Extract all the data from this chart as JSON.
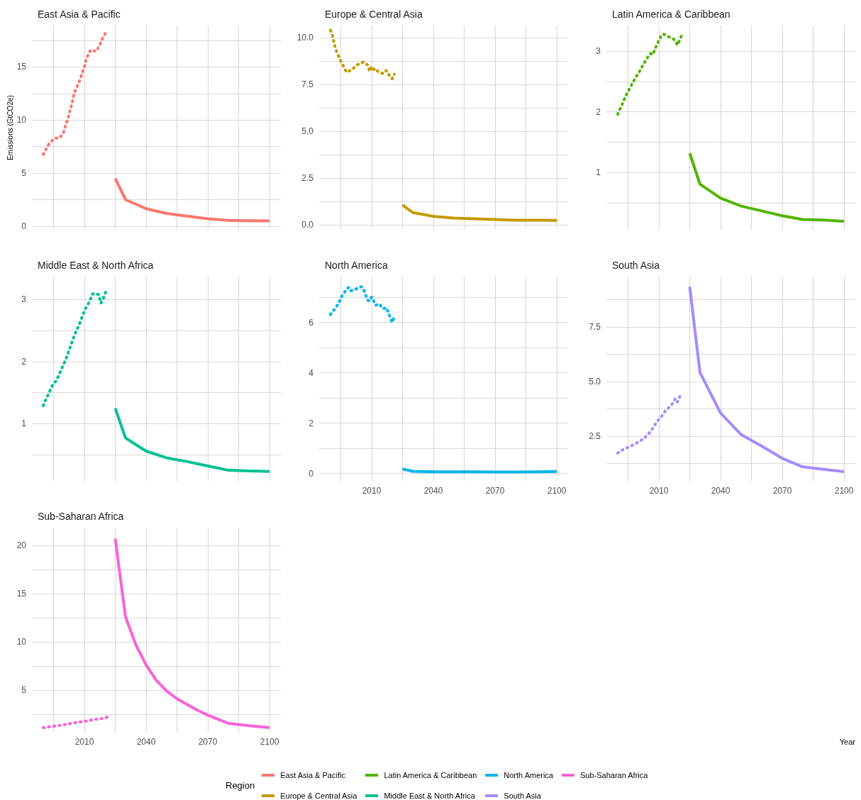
{
  "chart_data": [
    {
      "type": "line",
      "title": "East Asia & Pacific",
      "ylabel": "Emissions (GtCO2e)",
      "legend": "bottom",
      "legend_title": "Region",
      "grid": true,
      "tick_labels": "y",
      "xlim": [
        1984.5,
        2105.5
      ],
      "xticks": [
        {
          "value": 1995,
          "label": null
        },
        2010,
        {
          "value": 2025,
          "label": null
        },
        2040,
        {
          "value": 2055,
          "label": null
        },
        2070,
        {
          "value": 2085,
          "label": null
        },
        2100
      ],
      "ylim": [
        -0.34,
        18.9
      ],
      "yticks": [
        0,
        {
          "value": 2.5,
          "label": null
        },
        5,
        {
          "value": 7.5,
          "label": null
        },
        10,
        {
          "value": 12.5,
          "label": null
        },
        15,
        {
          "value": 17.5,
          "label": null
        }
      ],
      "series": [
        {
          "color": "#f8766d",
          "line_style": "dotted",
          "x": [
            1990,
            1991,
            1992,
            1993,
            1994,
            1995,
            1996,
            1997,
            1998,
            1999,
            2000,
            2001,
            2002,
            2003,
            2004,
            2005,
            2006,
            2007,
            2008,
            2009,
            2010,
            2011,
            2012,
            2013,
            2014,
            2015,
            2016,
            2017,
            2018,
            2019,
            2020,
            2021
          ],
          "values": [
            6.76,
            7.1,
            7.5,
            7.8,
            8.0,
            8.2,
            8.3,
            8.3,
            8.3,
            8.6,
            8.9,
            9.6,
            10.1,
            10.9,
            11.6,
            12.5,
            12.95,
            13.4,
            13.85,
            14.5,
            15.0,
            15.8,
            16.2,
            16.6,
            16.55,
            16.5,
            16.5,
            16.9,
            17.3,
            17.8,
            18.1,
            18.5
          ]
        },
        {
          "name": "East Asia & Pacific",
          "color": "#f8766d",
          "line_style": "solid",
          "x": [
            2025,
            2030,
            2040,
            2050,
            2060,
            2070,
            2080,
            2090,
            2100
          ],
          "values": [
            4.5,
            2.5,
            1.65,
            1.2,
            0.95,
            0.7,
            0.55,
            0.52,
            0.5
          ]
        }
      ]
    },
    {
      "type": "line",
      "title": "Europe & Central Asia",
      "grid": true,
      "tick_labels": "y",
      "xlim": [
        1984.5,
        2105.5
      ],
      "xticks": [
        {
          "value": 1995,
          "label": null
        },
        2010,
        {
          "value": 2025,
          "label": null
        },
        2040,
        {
          "value": 2055,
          "label": null
        },
        2070,
        {
          "value": 2085,
          "label": null
        },
        2100
      ],
      "ylim": [
        -0.27,
        10.65
      ],
      "yticks": [
        {
          "value": 0,
          "label": "0.0"
        },
        {
          "value": 1.25,
          "label": null
        },
        2.5,
        {
          "value": 3.75,
          "label": null
        },
        {
          "value": 5,
          "label": "5.0"
        },
        {
          "value": 6.25,
          "label": null
        },
        7.5,
        {
          "value": 8.75,
          "label": null
        },
        {
          "value": 10,
          "label": "10.0"
        }
      ],
      "series": [
        {
          "color": "#c49a00",
          "line_style": "dotted",
          "x": [
            1990,
            1991,
            1992,
            1993,
            1994,
            1995,
            1996,
            1997,
            1998,
            1999,
            2000,
            2001,
            2002,
            2003,
            2004,
            2005,
            2006,
            2007,
            2008,
            2009,
            2010,
            2011,
            2012,
            2013,
            2014,
            2015,
            2016,
            2017,
            2018,
            2019,
            2020,
            2021
          ],
          "values": [
            10.4,
            10.1,
            9.6,
            9.25,
            9.0,
            8.75,
            8.55,
            8.3,
            8.15,
            8.2,
            8.3,
            8.35,
            8.45,
            8.55,
            8.6,
            8.65,
            8.7,
            8.6,
            8.55,
            8.2,
            8.45,
            8.3,
            8.35,
            8.2,
            8.15,
            8.1,
            8.1,
            8.25,
            8.1,
            7.9,
            7.8,
            8.05
          ]
        },
        {
          "name": "Europe & Central Asia",
          "color": "#c49a00",
          "line_style": "solid",
          "x": [
            2025,
            2030,
            2040,
            2050,
            2060,
            2070,
            2080,
            2090,
            2100
          ],
          "values": [
            1.05,
            0.65,
            0.45,
            0.36,
            0.32,
            0.28,
            0.24,
            0.24,
            0.23
          ]
        }
      ]
    },
    {
      "type": "line",
      "title": "Latin America & Caribbean",
      "grid": true,
      "tick_labels": "y",
      "xlim": [
        1984.5,
        2105.5
      ],
      "xticks": [
        {
          "value": 1995,
          "label": null
        },
        2010,
        {
          "value": 2025,
          "label": null
        },
        2040,
        {
          "value": 2055,
          "label": null
        },
        2070,
        {
          "value": 2085,
          "label": null
        },
        2100
      ],
      "ylim": [
        0.06,
        3.42
      ],
      "yticks": [
        {
          "value": 0.5,
          "label": null
        },
        1,
        {
          "value": 1.5,
          "label": null
        },
        2,
        {
          "value": 2.5,
          "label": null
        },
        3
      ],
      "series": [
        {
          "color": "#53b400",
          "line_style": "dotted",
          "x": [
            1990,
            1991,
            1992,
            1993,
            1994,
            1995,
            1996,
            1997,
            1998,
            1999,
            2000,
            2001,
            2002,
            2003,
            2004,
            2005,
            2006,
            2007,
            2008,
            2009,
            2010,
            2011,
            2012,
            2013,
            2014,
            2015,
            2016,
            2017,
            2018,
            2019,
            2020,
            2021
          ],
          "values": [
            1.96,
            2.04,
            2.11,
            2.19,
            2.27,
            2.33,
            2.4,
            2.46,
            2.52,
            2.58,
            2.63,
            2.69,
            2.75,
            2.81,
            2.87,
            2.92,
            2.96,
            2.94,
            3.02,
            3.1,
            3.17,
            3.24,
            3.28,
            3.27,
            3.25,
            3.23,
            3.22,
            3.2,
            3.17,
            3.1,
            3.17,
            3.25
          ]
        },
        {
          "name": "Latin America & Caribbean",
          "color": "#53b400",
          "line_style": "solid",
          "x": [
            2025,
            2030,
            2040,
            2050,
            2060,
            2070,
            2080,
            2090,
            2100
          ],
          "values": [
            1.32,
            0.81,
            0.58,
            0.45,
            0.37,
            0.29,
            0.23,
            0.22,
            0.2
          ]
        }
      ]
    },
    {
      "type": "line",
      "title": "Middle East & North Africa",
      "grid": true,
      "tick_labels": "y",
      "xlim": [
        1984.5,
        2105.5
      ],
      "xticks": [
        {
          "value": 1995,
          "label": null
        },
        2010,
        {
          "value": 2025,
          "label": null
        },
        2040,
        {
          "value": 2055,
          "label": null
        },
        2070,
        {
          "value": 2085,
          "label": null
        },
        2100
      ],
      "ylim": [
        0.08,
        3.37
      ],
      "yticks": [
        {
          "value": 0.5,
          "label": null
        },
        1,
        {
          "value": 1.5,
          "label": null
        },
        2,
        {
          "value": 2.5,
          "label": null
        },
        3
      ],
      "series": [
        {
          "color": "#00c094",
          "line_style": "dotted",
          "x": [
            1990,
            1991,
            1992,
            1993,
            1994,
            1995,
            1996,
            1997,
            1998,
            1999,
            2000,
            2001,
            2002,
            2003,
            2004,
            2005,
            2006,
            2007,
            2008,
            2009,
            2010,
            2011,
            2012,
            2013,
            2014,
            2015,
            2016,
            2017,
            2018,
            2019,
            2020,
            2021
          ],
          "values": [
            1.29,
            1.37,
            1.44,
            1.51,
            1.59,
            1.65,
            1.68,
            1.74,
            1.81,
            1.89,
            1.96,
            2.04,
            2.13,
            2.22,
            2.32,
            2.41,
            2.49,
            2.56,
            2.64,
            2.73,
            2.82,
            2.88,
            2.94,
            3.01,
            3.09,
            3.1,
            3.09,
            3.08,
            2.94,
            3.0,
            3.09,
            3.18
          ]
        },
        {
          "name": "Middle East & North Africa",
          "color": "#00c094",
          "line_style": "solid",
          "x": [
            2025,
            2030,
            2040,
            2050,
            2060,
            2070,
            2080,
            2090,
            2100
          ],
          "values": [
            1.25,
            0.77,
            0.56,
            0.45,
            0.39,
            0.32,
            0.25,
            0.24,
            0.23
          ]
        }
      ]
    },
    {
      "type": "line",
      "title": "North America",
      "grid": true,
      "xlim": [
        1984.5,
        2105.5
      ],
      "xticks": [
        {
          "value": 1995,
          "label": null
        },
        2010,
        {
          "value": 2025,
          "label": null
        },
        2040,
        {
          "value": 2055,
          "label": null
        },
        2070,
        {
          "value": 2085,
          "label": null
        },
        2100
      ],
      "ylim": [
        -0.29,
        7.82
      ],
      "yticks": [
        0,
        {
          "value": 1,
          "label": null
        },
        2,
        {
          "value": 3,
          "label": null
        },
        4,
        {
          "value": 5,
          "label": null
        },
        6,
        {
          "value": 7,
          "label": null
        }
      ],
      "series": [
        {
          "color": "#00b6eb",
          "line_style": "dotted",
          "x": [
            1990,
            1991,
            1992,
            1993,
            1994,
            1995,
            1996,
            1997,
            1998,
            1999,
            2000,
            2001,
            2002,
            2003,
            2004,
            2005,
            2006,
            2007,
            2008,
            2009,
            2010,
            2011,
            2012,
            2013,
            2014,
            2015,
            2016,
            2017,
            2018,
            2019,
            2020,
            2021
          ],
          "values": [
            6.31,
            6.43,
            6.52,
            6.64,
            6.77,
            6.94,
            7.12,
            7.22,
            7.33,
            7.4,
            7.26,
            7.29,
            7.31,
            7.35,
            7.4,
            7.42,
            7.33,
            7.12,
            6.89,
            6.85,
            7.01,
            6.85,
            6.68,
            6.71,
            6.73,
            6.57,
            6.55,
            6.59,
            6.43,
            6.2,
            6.0,
            6.22
          ]
        },
        {
          "name": "North America",
          "color": "#00b6eb",
          "line_style": "solid",
          "x": [
            2025,
            2030,
            2040,
            2050,
            2060,
            2070,
            2080,
            2090,
            2100
          ],
          "values": [
            0.18,
            0.09,
            0.07,
            0.07,
            0.07,
            0.06,
            0.06,
            0.07,
            0.08
          ]
        }
      ]
    },
    {
      "type": "line",
      "title": "South Asia",
      "xlabel": "Year",
      "grid": true,
      "xlim": [
        1984.5,
        2105.5
      ],
      "xticks": [
        {
          "value": 1995,
          "label": null
        },
        2010,
        {
          "value": 2025,
          "label": null
        },
        2040,
        {
          "value": 2055,
          "label": null
        },
        2070,
        {
          "value": 2085,
          "label": null
        },
        2100
      ],
      "ylim": [
        0.45,
        9.81
      ],
      "yticks": [
        {
          "value": 1.25,
          "label": null
        },
        2.5,
        {
          "value": 3.75,
          "label": null
        },
        {
          "value": 5,
          "label": "5.0"
        },
        {
          "value": 6.25,
          "label": null
        },
        7.5,
        {
          "value": 8.75,
          "label": null
        }
      ],
      "series": [
        {
          "color": "#a58aff",
          "line_style": "dotted",
          "x": [
            1990,
            1991,
            1992,
            1993,
            1994,
            1995,
            1996,
            1997,
            1998,
            1999,
            2000,
            2001,
            2002,
            2003,
            2004,
            2005,
            2006,
            2007,
            2008,
            2009,
            2010,
            2011,
            2012,
            2013,
            2014,
            2015,
            2016,
            2017,
            2018,
            2019,
            2020,
            2021
          ],
          "values": [
            1.72,
            1.78,
            1.85,
            1.9,
            1.95,
            1.98,
            2.03,
            2.08,
            2.13,
            2.18,
            2.23,
            2.29,
            2.35,
            2.4,
            2.52,
            2.6,
            2.72,
            2.85,
            3.0,
            3.16,
            3.26,
            3.37,
            3.5,
            3.64,
            3.74,
            3.82,
            3.9,
            4.05,
            4.22,
            4.06,
            4.28,
            4.44
          ]
        },
        {
          "name": "South Asia",
          "color": "#a58aff",
          "line_style": "solid",
          "x": [
            2025,
            2030,
            2040,
            2050,
            2060,
            2070,
            2080,
            2090,
            2100
          ],
          "values": [
            9.35,
            5.41,
            3.56,
            2.57,
            2.04,
            1.48,
            1.09,
            0.98,
            0.87
          ]
        }
      ]
    },
    {
      "type": "line",
      "title": "Sub-Saharan Africa",
      "grid": true,
      "xlim": [
        1984.5,
        2105.5
      ],
      "xticks": [
        {
          "value": 1995,
          "label": null
        },
        2010,
        {
          "value": 2025,
          "label": null
        },
        2040,
        {
          "value": 2055,
          "label": null
        },
        2070,
        {
          "value": 2085,
          "label": null
        },
        2100
      ],
      "ylim": [
        0.66,
        21.85
      ],
      "yticks": [
        {
          "value": 2.5,
          "label": null
        },
        5,
        {
          "value": 7.5,
          "label": null
        },
        10,
        {
          "value": 12.5,
          "label": null
        },
        15,
        {
          "value": 17.5,
          "label": null
        },
        20
      ],
      "series": [
        {
          "color": "#fb61d7",
          "line_style": "dotted",
          "x": [
            1990,
            1995,
            2000,
            2005,
            2010,
            2015,
            2020,
            2021
          ],
          "values": [
            1.1,
            1.25,
            1.4,
            1.6,
            1.75,
            1.95,
            2.1,
            2.2
          ]
        },
        {
          "name": "Sub-Saharan Africa",
          "color": "#fb61d7",
          "line_style": "solid",
          "x": [
            2025,
            2030,
            2035,
            2040,
            2045,
            2050,
            2055,
            2060,
            2065,
            2070,
            2080,
            2090,
            2100
          ],
          "values": [
            20.7,
            12.6,
            9.7,
            7.6,
            6.0,
            4.9,
            4.1,
            3.5,
            2.9,
            2.4,
            1.55,
            1.3,
            1.1
          ]
        }
      ]
    }
  ]
}
